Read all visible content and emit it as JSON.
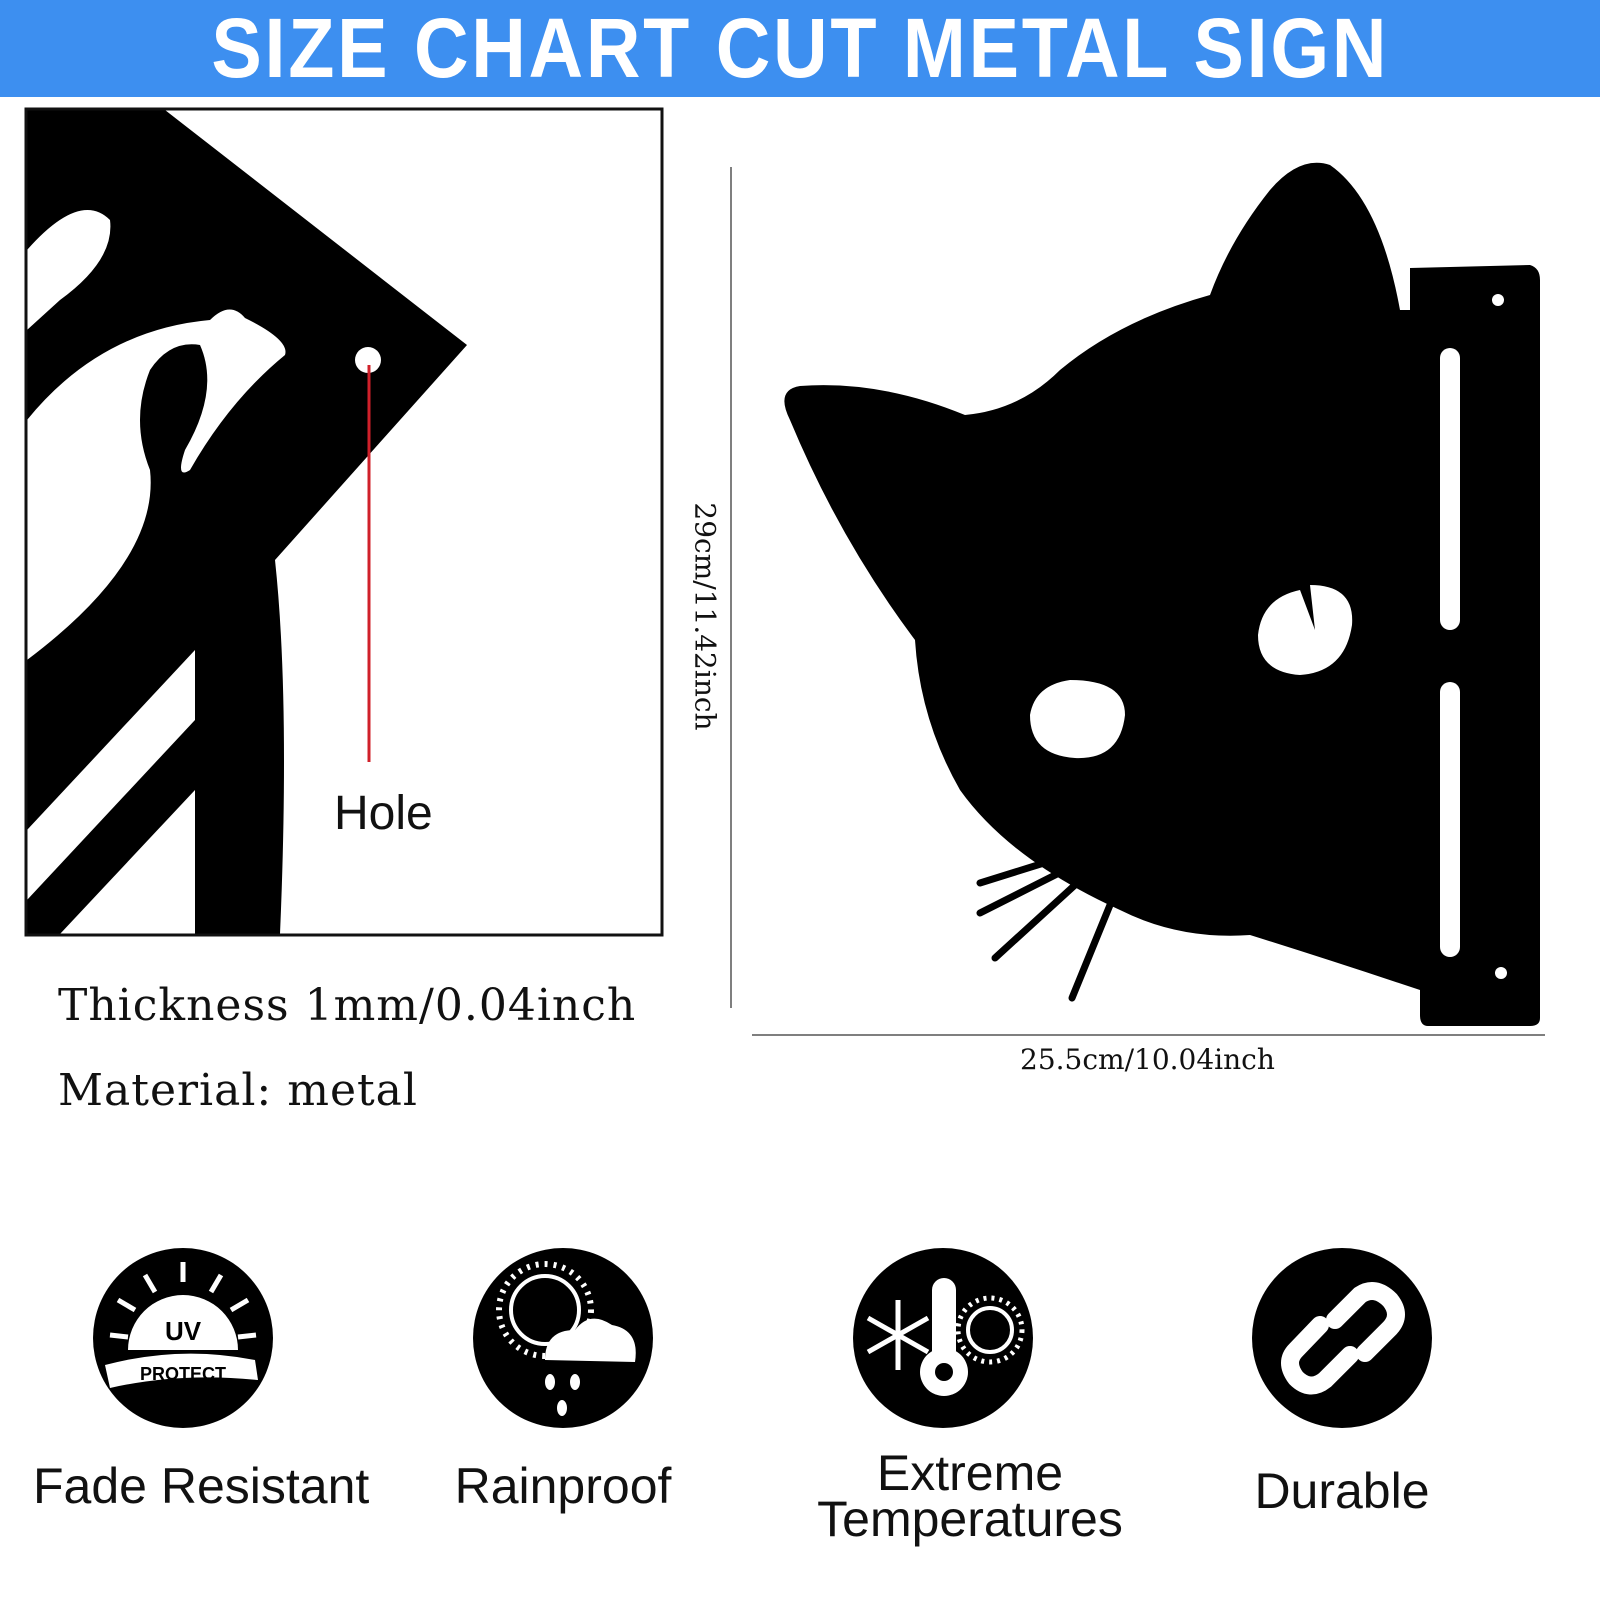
{
  "header": {
    "title": "SIZE CHART CUT METAL SIGN"
  },
  "detail": {
    "hole_label": "Hole",
    "accent_line_color": "#d0202a"
  },
  "specs": {
    "thickness": "Thickness 1mm/0.04inch",
    "material": "Material: metal"
  },
  "dimensions": {
    "height": "29cm/11.42inch",
    "width": "25.5cm/10.04inch"
  },
  "features": [
    {
      "label": "Fade Resistant",
      "icon": "uv-protect-icon",
      "icon_text_top": "UV",
      "icon_text_bottom": "PROTECT"
    },
    {
      "label": "Rainproof",
      "icon": "sun-cloud-rain-icon"
    },
    {
      "label": "Extreme Temperatures",
      "icon": "snowflake-thermometer-sun-icon"
    },
    {
      "label": "Durable",
      "icon": "chain-link-icon"
    }
  ],
  "colors": {
    "header_bg": "#3d8ff0",
    "ink": "#000000"
  }
}
